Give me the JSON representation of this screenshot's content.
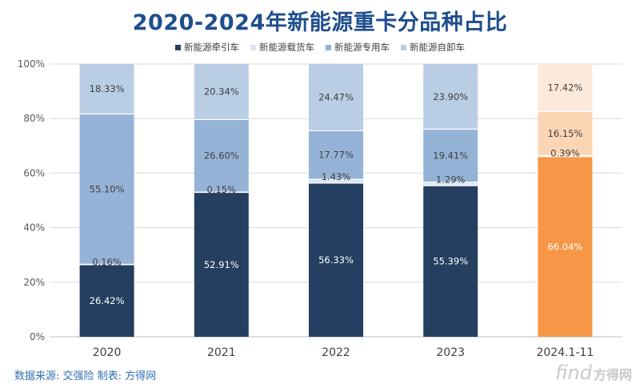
{
  "chart_data": {
    "type": "bar",
    "stacked": true,
    "percent": true,
    "title": "2020-2024年新能源重卡分品种占比",
    "categories": [
      "2020",
      "2021",
      "2022",
      "2023",
      "2024.1-11"
    ],
    "yticks": [
      "0%",
      "20%",
      "40%",
      "60%",
      "80%",
      "100%"
    ],
    "ylim": [
      0,
      100
    ],
    "legend_position": "top",
    "series": [
      {
        "name": "新能源牵引车",
        "values": [
          26.42,
          52.91,
          56.33,
          55.39,
          66.04
        ],
        "labels": [
          "26.42%",
          "52.91%",
          "56.33%",
          "55.39%",
          "66.04%"
        ]
      },
      {
        "name": "新能源载货车",
        "values": [
          0.16,
          0.15,
          1.43,
          1.29,
          0.39
        ],
        "labels": [
          "0.16%",
          "0.15%",
          "1.43%",
          "1.29%",
          "0.39%"
        ]
      },
      {
        "name": "新能源专用车",
        "values": [
          55.1,
          26.6,
          17.77,
          19.41,
          16.15
        ],
        "labels": [
          "55.10%",
          "26.60%",
          "17.77%",
          "19.41%",
          "16.15%"
        ]
      },
      {
        "name": "新能源自卸车",
        "values": [
          18.33,
          20.34,
          24.47,
          23.9,
          17.42
        ],
        "labels": [
          "18.33%",
          "20.34%",
          "24.47%",
          "23.90%",
          "17.42%"
        ]
      }
    ],
    "colors": {
      "normal": [
        "#243f60",
        "#dce6f2",
        "#95b3d7",
        "#b9cde5"
      ],
      "highlight": [
        "#f79646",
        "#fde9d9",
        "#fcd5b5",
        "#fde9d9"
      ],
      "highlight_index": 4
    },
    "label_colors": {
      "dark": "#ffffff",
      "light": "#404040"
    }
  },
  "legend_colors": [
    "#243f60",
    "#dce6f2",
    "#95b3d7",
    "#b9cde5"
  ],
  "footer": {
    "source": "数据来源: 交强险 制表: 方得网"
  },
  "watermark": {
    "logo": "find",
    "text": "方得网"
  }
}
